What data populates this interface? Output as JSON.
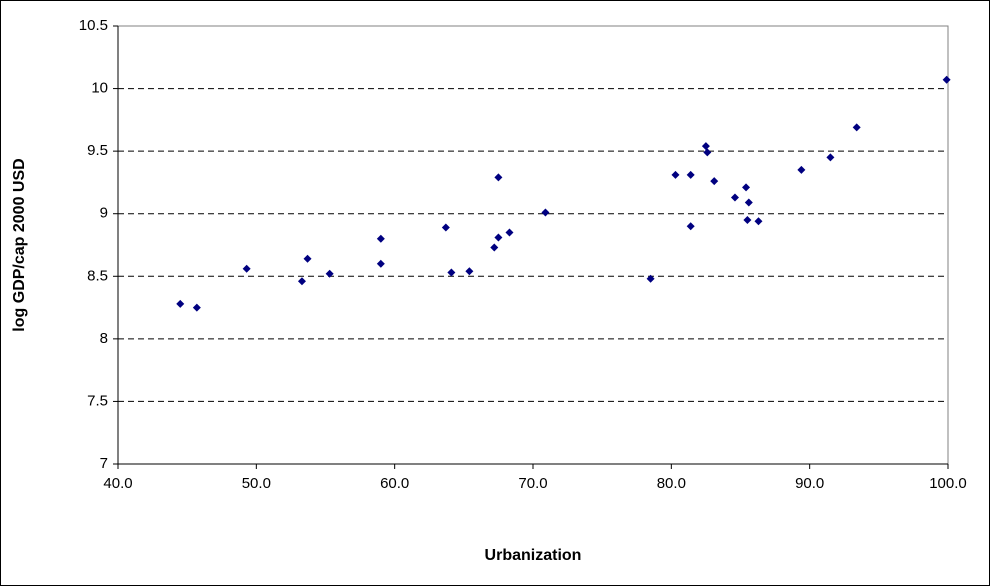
{
  "chart_data": {
    "type": "scatter",
    "x_label": "Urbanization",
    "y_label": "log GDP/cap 2000 USD",
    "color": "#000080",
    "grid": true,
    "xlim": [
      40,
      100
    ],
    "xticks": [
      {
        "value": 40,
        "label": "40.0"
      },
      {
        "value": 50,
        "label": "50.0"
      },
      {
        "value": 60,
        "label": "60.0"
      },
      {
        "value": 70,
        "label": "70.0"
      },
      {
        "value": 80,
        "label": "80.0"
      },
      {
        "value": 90,
        "label": "90.0"
      },
      {
        "value": 100,
        "label": "100.0"
      }
    ],
    "ylim": [
      7,
      10.5
    ],
    "yticks": [
      7,
      7.5,
      8,
      8.5,
      9,
      9.5,
      10,
      10.5
    ],
    "x": [
      44.5,
      45.7,
      49.3,
      53.3,
      53.7,
      55.3,
      59.0,
      59.0,
      63.7,
      64.1,
      65.4,
      67.2,
      67.5,
      67.5,
      68.3,
      70.9,
      78.5,
      80.3,
      81.4,
      81.4,
      82.5,
      82.6,
      83.1,
      84.6,
      85.4,
      85.6,
      85.5,
      86.3,
      89.4,
      91.5,
      93.4,
      99.9
    ],
    "y": [
      8.28,
      8.25,
      8.56,
      8.46,
      8.64,
      8.52,
      8.8,
      8.6,
      8.89,
      8.53,
      8.54,
      8.73,
      9.29,
      8.81,
      8.85,
      9.01,
      8.48,
      9.31,
      9.31,
      8.9,
      9.54,
      9.49,
      9.26,
      9.13,
      9.21,
      9.09,
      8.95,
      8.94,
      9.35,
      9.45,
      9.69,
      10.07
    ]
  }
}
